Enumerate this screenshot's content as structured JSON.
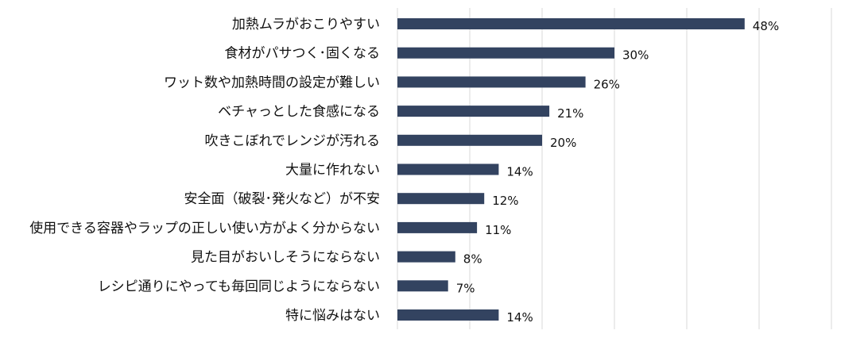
{
  "chart_data": {
    "type": "bar",
    "orientation": "horizontal",
    "categories": [
      "加熱ムラがおこりやすい",
      "食材がパサつく･固くなる",
      "ワット数や加熱時間の設定が難しい",
      "ベチャっとした食感になる",
      "吹きこぼれでレンジが汚れる",
      "大量に作れない",
      "安全面（破裂･発火など）が不安",
      "使用できる容器やラップの正しい使い方がよく分からない",
      "見た目がおいしそうにならない",
      "レシピ通りにやっても毎回同じようにならない",
      "特に悩みはない"
    ],
    "values": [
      48,
      30,
      26,
      21,
      20,
      14,
      12,
      11,
      8,
      7,
      14
    ],
    "data_labels": [
      "48%",
      "30%",
      "26%",
      "21%",
      "20%",
      "14%",
      "12%",
      "11%",
      "8%",
      "7%",
      "14%"
    ],
    "xlim": [
      0,
      60
    ],
    "grid": true,
    "grid_step": 10,
    "bar_color": "#334360",
    "grid_color": "#d9d9d9"
  }
}
